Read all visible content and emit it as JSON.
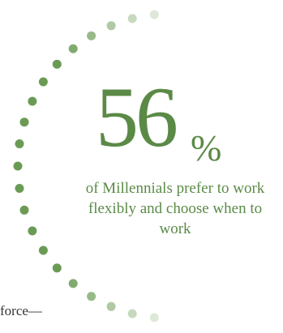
{
  "stat": {
    "number": "56",
    "percent_sign": "%",
    "caption": "of Millennials prefer to work flexibly and choose when to work"
  },
  "body_text": {
    "fragment": "force—"
  },
  "colors": {
    "accent_green": "#5b8a47",
    "dot_dark": "#6a9b55",
    "dot_light": "#e3ecdf",
    "body_text": "#333333"
  }
}
